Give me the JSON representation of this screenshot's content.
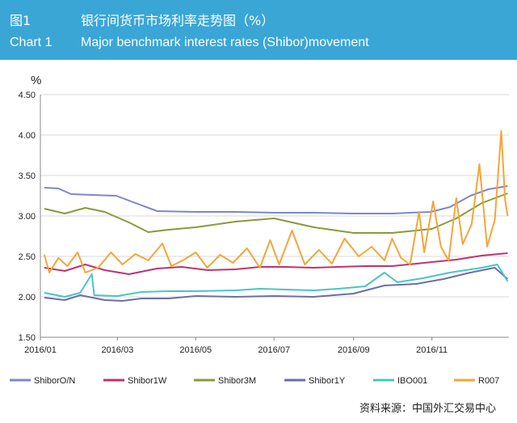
{
  "header": {
    "figure_label_cn": "图1",
    "title_cn": "银行间货币市场利率走势图（%）",
    "figure_label_en": "Chart 1",
    "title_en": "Major benchmark interest rates (Shibor)movement"
  },
  "source": "资料来源：中国外汇交易中心",
  "colors": {
    "header_bg": "#3aa6d6",
    "gridline": "#d9d9d9"
  },
  "chart_data": {
    "type": "line",
    "ylabel": "%",
    "ylim": [
      1.5,
      4.5
    ],
    "yticks": [
      "1.50",
      "2.00",
      "2.50",
      "3.00",
      "3.50",
      "4.00",
      "4.50"
    ],
    "xlim": [
      "2016/01/01",
      "2016/12/31"
    ],
    "xticks": [
      {
        "label": "2016/01",
        "x": "2016/01/01"
      },
      {
        "label": "2016/03",
        "x": "2016/03/01"
      },
      {
        "label": "2016/05",
        "x": "2016/05/01"
      },
      {
        "label": "2016/07",
        "x": "2016/07/01"
      },
      {
        "label": "2016/09",
        "x": "2016/09/01"
      },
      {
        "label": "2016/11",
        "x": "2016/11/01"
      }
    ],
    "grid": "horizontal",
    "legend_position": "bottom",
    "series": [
      {
        "name": "ShiborO/N",
        "color": "#7f86c6",
        "points": [
          [
            "2016/01/04",
            3.35
          ],
          [
            "2016/01/15",
            3.34
          ],
          [
            "2016/01/25",
            3.27
          ],
          [
            "2016/02/10",
            3.26
          ],
          [
            "2016/02/29",
            3.25
          ],
          [
            "2016/03/15",
            3.16
          ],
          [
            "2016/04/01",
            3.06
          ],
          [
            "2016/05/01",
            3.05
          ],
          [
            "2016/06/01",
            3.05
          ],
          [
            "2016/07/01",
            3.04
          ],
          [
            "2016/08/01",
            3.04
          ],
          [
            "2016/09/01",
            3.03
          ],
          [
            "2016/10/01",
            3.03
          ],
          [
            "2016/10/31",
            3.05
          ],
          [
            "2016/11/15",
            3.11
          ],
          [
            "2016/12/01",
            3.25
          ],
          [
            "2016/12/15",
            3.33
          ],
          [
            "2016/12/30",
            3.37
          ]
        ]
      },
      {
        "name": "Shibor1W",
        "color": "#c0336d",
        "points": [
          [
            "2016/01/04",
            2.36
          ],
          [
            "2016/01/20",
            2.32
          ],
          [
            "2016/02/05",
            2.4
          ],
          [
            "2016/02/20",
            2.33
          ],
          [
            "2016/03/10",
            2.28
          ],
          [
            "2016/04/01",
            2.35
          ],
          [
            "2016/04/20",
            2.37
          ],
          [
            "2016/05/10",
            2.33
          ],
          [
            "2016/06/01",
            2.34
          ],
          [
            "2016/06/20",
            2.37
          ],
          [
            "2016/07/10",
            2.37
          ],
          [
            "2016/08/01",
            2.36
          ],
          [
            "2016/08/20",
            2.37
          ],
          [
            "2016/09/10",
            2.38
          ],
          [
            "2016/10/01",
            2.38
          ],
          [
            "2016/10/20",
            2.41
          ],
          [
            "2016/11/01",
            2.43
          ],
          [
            "2016/11/20",
            2.46
          ],
          [
            "2016/12/10",
            2.51
          ],
          [
            "2016/12/30",
            2.54
          ]
        ]
      },
      {
        "name": "Shibor3M",
        "color": "#8a9a3a",
        "points": [
          [
            "2016/01/04",
            3.09
          ],
          [
            "2016/01/20",
            3.03
          ],
          [
            "2016/02/05",
            3.1
          ],
          [
            "2016/02/20",
            3.05
          ],
          [
            "2016/03/10",
            2.92
          ],
          [
            "2016/03/25",
            2.8
          ],
          [
            "2016/04/10",
            2.83
          ],
          [
            "2016/05/01",
            2.86
          ],
          [
            "2016/06/01",
            2.93
          ],
          [
            "2016/07/01",
            2.97
          ],
          [
            "2016/08/01",
            2.86
          ],
          [
            "2016/09/01",
            2.79
          ],
          [
            "2016/10/01",
            2.79
          ],
          [
            "2016/11/01",
            2.84
          ],
          [
            "2016/11/20",
            2.97
          ],
          [
            "2016/12/10",
            3.16
          ],
          [
            "2016/12/30",
            3.28
          ]
        ]
      },
      {
        "name": "Shibor1Y",
        "color": "#6a6fa8",
        "points": [
          [
            "2016/01/04",
            1.99
          ],
          [
            "2016/01/20",
            1.96
          ],
          [
            "2016/02/01",
            2.02
          ],
          [
            "2016/02/20",
            1.96
          ],
          [
            "2016/03/05",
            1.95
          ],
          [
            "2016/03/20",
            1.98
          ],
          [
            "2016/04/10",
            1.98
          ],
          [
            "2016/05/01",
            2.01
          ],
          [
            "2016/06/01",
            2.0
          ],
          [
            "2016/07/01",
            2.01
          ],
          [
            "2016/08/01",
            2.0
          ],
          [
            "2016/09/01",
            2.04
          ],
          [
            "2016/09/25",
            2.14
          ],
          [
            "2016/10/20",
            2.16
          ],
          [
            "2016/11/10",
            2.22
          ],
          [
            "2016/12/01",
            2.3
          ],
          [
            "2016/12/20",
            2.36
          ],
          [
            "2016/12/30",
            2.22
          ]
        ]
      },
      {
        "name": "IBO001",
        "color": "#4bc4c4",
        "points": [
          [
            "2016/01/04",
            2.05
          ],
          [
            "2016/01/20",
            2.0
          ],
          [
            "2016/02/01",
            2.05
          ],
          [
            "2016/02/10",
            2.28
          ],
          [
            "2016/02/12",
            2.02
          ],
          [
            "2016/03/01",
            2.01
          ],
          [
            "2016/03/20",
            2.06
          ],
          [
            "2016/04/10",
            2.07
          ],
          [
            "2016/05/01",
            2.07
          ],
          [
            "2016/06/01",
            2.08
          ],
          [
            "2016/06/20",
            2.1
          ],
          [
            "2016/07/10",
            2.09
          ],
          [
            "2016/08/01",
            2.08
          ],
          [
            "2016/08/20",
            2.1
          ],
          [
            "2016/09/10",
            2.13
          ],
          [
            "2016/09/25",
            2.3
          ],
          [
            "2016/10/05",
            2.18
          ],
          [
            "2016/10/25",
            2.23
          ],
          [
            "2016/11/15",
            2.3
          ],
          [
            "2016/12/10",
            2.36
          ],
          [
            "2016/12/22",
            2.4
          ],
          [
            "2016/12/30",
            2.19
          ]
        ]
      },
      {
        "name": "R007",
        "color": "#f5a53a",
        "points": [
          [
            "2016/01/04",
            2.52
          ],
          [
            "2016/01/08",
            2.3
          ],
          [
            "2016/01/15",
            2.48
          ],
          [
            "2016/01/22",
            2.38
          ],
          [
            "2016/01/30",
            2.55
          ],
          [
            "2016/02/05",
            2.3
          ],
          [
            "2016/02/15",
            2.36
          ],
          [
            "2016/02/25",
            2.55
          ],
          [
            "2016/03/05",
            2.4
          ],
          [
            "2016/03/15",
            2.53
          ],
          [
            "2016/03/25",
            2.45
          ],
          [
            "2016/04/05",
            2.66
          ],
          [
            "2016/04/12",
            2.38
          ],
          [
            "2016/04/22",
            2.46
          ],
          [
            "2016/05/01",
            2.55
          ],
          [
            "2016/05/10",
            2.36
          ],
          [
            "2016/05/20",
            2.52
          ],
          [
            "2016/05/30",
            2.42
          ],
          [
            "2016/06/10",
            2.6
          ],
          [
            "2016/06/20",
            2.36
          ],
          [
            "2016/06/28",
            2.7
          ],
          [
            "2016/07/05",
            2.4
          ],
          [
            "2016/07/15",
            2.82
          ],
          [
            "2016/07/25",
            2.4
          ],
          [
            "2016/08/05",
            2.58
          ],
          [
            "2016/08/15",
            2.41
          ],
          [
            "2016/08/25",
            2.72
          ],
          [
            "2016/09/05",
            2.5
          ],
          [
            "2016/09/15",
            2.62
          ],
          [
            "2016/09/25",
            2.45
          ],
          [
            "2016/10/01",
            2.72
          ],
          [
            "2016/10/08",
            2.48
          ],
          [
            "2016/10/15",
            2.4
          ],
          [
            "2016/10/22",
            3.05
          ],
          [
            "2016/10/26",
            2.55
          ],
          [
            "2016/11/02",
            3.18
          ],
          [
            "2016/11/08",
            2.62
          ],
          [
            "2016/11/14",
            2.45
          ],
          [
            "2016/11/20",
            3.22
          ],
          [
            "2016/11/25",
            2.65
          ],
          [
            "2016/12/02",
            2.9
          ],
          [
            "2016/12/08",
            3.64
          ],
          [
            "2016/12/14",
            2.62
          ],
          [
            "2016/12/20",
            2.95
          ],
          [
            "2016/12/25",
            4.05
          ],
          [
            "2016/12/28",
            3.2
          ],
          [
            "2016/12/30",
            3.0
          ]
        ]
      }
    ]
  }
}
